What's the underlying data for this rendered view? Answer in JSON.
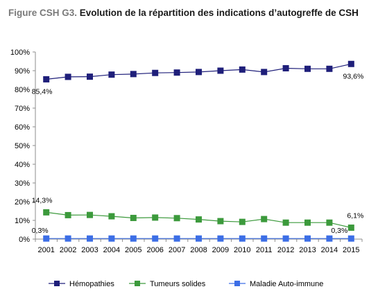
{
  "title": {
    "prefix": "Figure CSH G3.",
    "text": "Evolution de la répartition des indications d’autogreffe de CSH"
  },
  "chart_data": {
    "type": "line",
    "x": [
      "2001",
      "2002",
      "2003",
      "2004",
      "2005",
      "2006",
      "2007",
      "2008",
      "2009",
      "2010",
      "2011",
      "2012",
      "2013",
      "2014",
      "2015"
    ],
    "ylim": [
      0,
      100
    ],
    "yticks": [
      "0%",
      "10%",
      "20%",
      "30%",
      "40%",
      "50%",
      "60%",
      "70%",
      "80%",
      "90%",
      "100%"
    ],
    "grid": false,
    "legend_position": "bottom",
    "series": [
      {
        "name": "Hémopathies",
        "color": "#1f1f7a",
        "marker": "square",
        "values": [
          85.4,
          86.7,
          86.8,
          87.9,
          88.2,
          88.8,
          89.0,
          89.3,
          90.0,
          90.6,
          89.3,
          91.3,
          91.0,
          91.0,
          93.6
        ]
      },
      {
        "name": "Tumeurs solides",
        "color": "#3c9a3c",
        "marker": "square",
        "values": [
          14.3,
          12.8,
          12.9,
          12.2,
          11.3,
          11.5,
          11.2,
          10.5,
          9.6,
          9.2,
          10.7,
          8.8,
          8.8,
          8.8,
          6.1
        ]
      },
      {
        "name": "Maladie Auto-immune",
        "color": "#3c6ee6",
        "marker": "square",
        "values": [
          0.3,
          0.3,
          0.3,
          0.3,
          0.3,
          0.3,
          0.3,
          0.3,
          0.3,
          0.3,
          0.3,
          0.3,
          0.3,
          0.3,
          0.3
        ]
      }
    ],
    "annotations": [
      {
        "series": 0,
        "index": 0,
        "text": "85,4%"
      },
      {
        "series": 0,
        "index": 14,
        "text": "93,6%"
      },
      {
        "series": 1,
        "index": 0,
        "text": "14,3%"
      },
      {
        "series": 1,
        "index": 14,
        "text": "6,1%"
      },
      {
        "series": 2,
        "index": 0,
        "text": "0,3%"
      },
      {
        "series": 2,
        "index": 14,
        "text": "0,3%"
      }
    ]
  }
}
